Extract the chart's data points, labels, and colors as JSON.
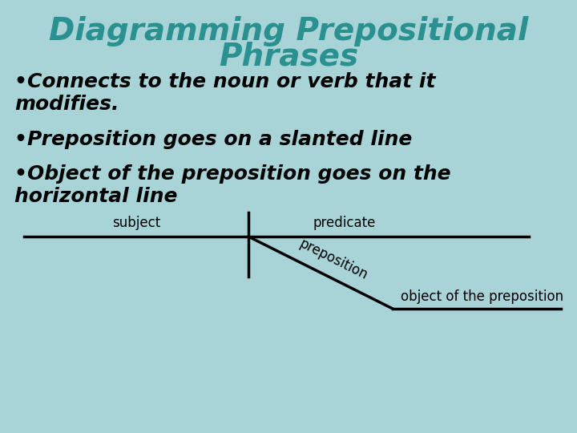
{
  "bg_color": "#a8d4d8",
  "title_line1": "Diagramming Prepositional",
  "title_line2": "Phrases",
  "title_color": "#2a9090",
  "title_fontsize": 28,
  "bullet1_line1": "•Connects to the noun or verb that it",
  "bullet1_line2": "modifies.",
  "bullet2": "•Preposition goes on a slanted line",
  "bullet3_line1": "•Object of the preposition goes on the",
  "bullet3_line2": "horizontal line",
  "bullet_fontsize": 18,
  "bullet_color": "#000000",
  "subject_label": "subject",
  "predicate_label": "predicate",
  "preposition_label": "preposition",
  "object_label": "object of the preposition",
  "diagram_line_color": "#000000",
  "diagram_label_fontsize": 12,
  "line_width": 2.5
}
